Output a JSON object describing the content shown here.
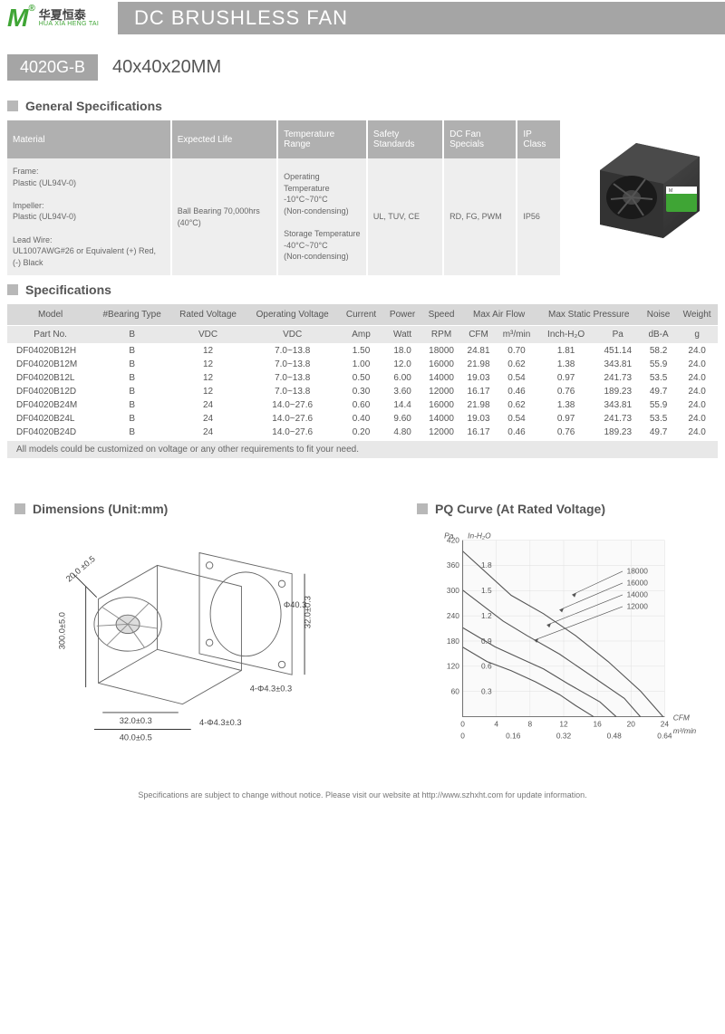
{
  "header": {
    "logo_cn": "华夏恒泰",
    "logo_en": "HUA XIA HENG TAI",
    "title": "DC BRUSHLESS FAN"
  },
  "subheader": {
    "model": "4020G-B",
    "dimensions": "40x40x20MM"
  },
  "sections": {
    "general_spec": "General Specifications",
    "specifications": "Specifications",
    "dimensions": "Dimensions (Unit:mm)",
    "pq_curve": "PQ Curve (At Rated Voltage)"
  },
  "gs_headers": [
    "Material",
    "Expected Life",
    "Temperature Range",
    "Safety Standards",
    "DC Fan Specials",
    "IP Class"
  ],
  "gs_row": {
    "material": "Frame:\nPlastic (UL94V-0)\n\nImpeller:\nPlastic (UL94V-0)\n\nLead Wire:\nUL1007AWG#26 or Equivalent (+) Red, (-) Black",
    "life": "Ball Bearing 70,000hrs (40°C)",
    "temp": "Operating Temperature\n-10°C~70°C\n(Non-condensing)\n\nStorage Temperature\n-40°C~70°C\n(Non-condensing)",
    "safety": "UL, TUV, CE",
    "specials": "RD, FG, PWM",
    "ip": "IP56"
  },
  "spec_headers1": [
    "Model",
    "#Bearing Type",
    "Rated Voltage",
    "Operating Voltage",
    "Current",
    "Power",
    "Speed",
    "Max Air Flow",
    "",
    "Max Static Pressure",
    "",
    "Noise",
    "Weight"
  ],
  "spec_headers2": [
    "Part No.",
    "B",
    "VDC",
    "VDC",
    "Amp",
    "Watt",
    "RPM",
    "CFM",
    "m³/min",
    "Inch-H₂O",
    "Pa",
    "dB-A",
    "g"
  ],
  "spec_rows": [
    [
      "DF04020B12H",
      "B",
      "12",
      "7.0~13.8",
      "1.50",
      "18.0",
      "18000",
      "24.81",
      "0.70",
      "1.81",
      "451.14",
      "58.2",
      "24.0"
    ],
    [
      "DF04020B12M",
      "B",
      "12",
      "7.0~13.8",
      "1.00",
      "12.0",
      "16000",
      "21.98",
      "0.62",
      "1.38",
      "343.81",
      "55.9",
      "24.0"
    ],
    [
      "DF04020B12L",
      "B",
      "12",
      "7.0~13.8",
      "0.50",
      "6.00",
      "14000",
      "19.03",
      "0.54",
      "0.97",
      "241.73",
      "53.5",
      "24.0"
    ],
    [
      "DF04020B12D",
      "B",
      "12",
      "7.0~13.8",
      "0.30",
      "3.60",
      "12000",
      "16.17",
      "0.46",
      "0.76",
      "189.23",
      "49.7",
      "24.0"
    ],
    [
      "DF04020B24M",
      "B",
      "24",
      "14.0~27.6",
      "0.60",
      "14.4",
      "16000",
      "21.98",
      "0.62",
      "1.38",
      "343.81",
      "55.9",
      "24.0"
    ],
    [
      "DF04020B24L",
      "B",
      "24",
      "14.0~27.6",
      "0.40",
      "9.60",
      "14000",
      "19.03",
      "0.54",
      "0.97",
      "241.73",
      "53.5",
      "24.0"
    ],
    [
      "DF04020B24D",
      "B",
      "24",
      "14.0~27.6",
      "0.20",
      "4.80",
      "12000",
      "16.17",
      "0.46",
      "0.76",
      "189.23",
      "49.7",
      "24.0"
    ]
  ],
  "spec_note": "All models could be customized on voltage or any other requirements to fit your need.",
  "dim_labels": {
    "d1": "20.0 ±0.5",
    "d2": "300.0±5.0",
    "d3": "32.0±0.3",
    "d4": "40.0±0.5",
    "d5": "4-Φ4.3±0.3",
    "d6": "Φ40.3",
    "d7": "32.0±0.3",
    "d8": "4-Φ4.3±0.3"
  },
  "pq": {
    "y_label_pa": "Pa",
    "y_label_in": "In-H₂O",
    "x_label_cfm": "CFM",
    "x_label_m3": "m³/min",
    "y_ticks_pa": [
      60,
      120,
      180,
      240,
      300,
      360,
      420
    ],
    "y_ticks_in": [
      "0.3",
      "0.6",
      "0.9",
      "1.2",
      "1.5",
      "1.8"
    ],
    "x_ticks_cfm": [
      0,
      4,
      8,
      12,
      16,
      20,
      24
    ],
    "x_ticks_m3": [
      "0",
      "0.16",
      "0.32",
      "0.48",
      "0.64"
    ],
    "curves": [
      "18000",
      "16000",
      "14000",
      "12000"
    ],
    "colors": {
      "grid": "#cccccc",
      "axis": "#666666",
      "curve": "#555555",
      "bg": "#f5f5f5"
    }
  },
  "footer": "Specifications are subject to change without notice. Please visit our website at http://www.szhxht.com for update information."
}
